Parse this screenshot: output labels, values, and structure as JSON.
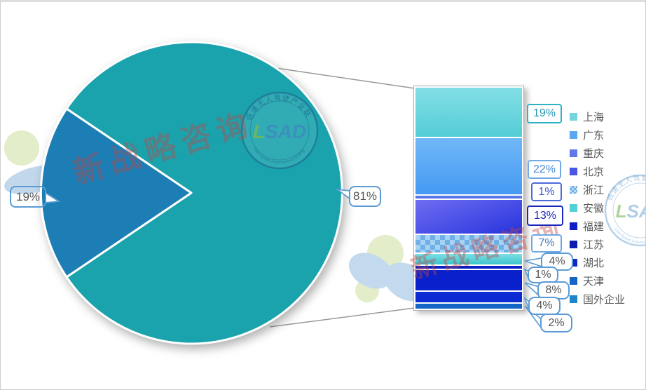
{
  "chart_data": {
    "type": "bar-of-pie",
    "title": "",
    "pie": {
      "slices": [
        {
          "label": "81%",
          "value": 81,
          "color": "#1aa3ad"
        },
        {
          "label": "19%",
          "value": 19,
          "color": "#1d7eb5"
        }
      ]
    },
    "bar_breakdown": {
      "represents_slice": "81%",
      "segments": [
        {
          "name": "上海",
          "label": "19%",
          "value": 19,
          "gradient": [
            "#83dfe6",
            "#54ccd6"
          ]
        },
        {
          "name": "广东",
          "label": "22%",
          "value": 22,
          "gradient": [
            "#70b7f8",
            "#459af2"
          ]
        },
        {
          "name": "重庆",
          "label": "1%",
          "value": 1,
          "color": "#5577e8"
        },
        {
          "name": "北京",
          "label": "13%",
          "value": 13,
          "gradient": [
            "#6f6df2",
            "#2734dc"
          ],
          "gradient_dir": "160deg"
        },
        {
          "name": "浙江",
          "label": "7%",
          "value": 7,
          "pattern": "checker",
          "color": "#9ccbf0"
        },
        {
          "name": "安徽",
          "label": "4%",
          "value": 4,
          "gradient": [
            "#7de0e4",
            "#3cc2cc"
          ]
        },
        {
          "name": "福建",
          "label": "1%",
          "value": 1,
          "color": "#0b1fc4"
        },
        {
          "name": "江苏",
          "label": "8%",
          "value": 8,
          "color": "#0a20cc"
        },
        {
          "name": "湖北",
          "label": "4%",
          "value": 4,
          "color": "#0d2bd2"
        },
        {
          "name": "天津",
          "label": "2%",
          "value": 2,
          "color": "#1567c5"
        }
      ]
    },
    "legend": {
      "position": "right",
      "items": [
        {
          "label": "上海",
          "color": "#76d4e0"
        },
        {
          "label": "广东",
          "color": "#5aa6f2"
        },
        {
          "label": "重庆",
          "color": "#6278e8"
        },
        {
          "label": "北京",
          "color": "#4b55e6"
        },
        {
          "label": "浙江",
          "color": "#8ec6ee",
          "pattern": "checker"
        },
        {
          "label": "安徽",
          "color": "#52d0d8"
        },
        {
          "label": "福建",
          "color": "#0f1ec8"
        },
        {
          "label": "江苏",
          "color": "#0c1cae"
        },
        {
          "label": "湖北",
          "color": "#0e2ac4"
        },
        {
          "label": "天津",
          "color": "#1565c8"
        },
        {
          "label": "国外企业",
          "color": "#1c86c8"
        }
      ]
    }
  },
  "watermarks": {
    "brand_text": "新战略咨询",
    "logo_l": "L",
    "logo_sad": "SAD",
    "logo_ring_text_top": "低速无人驾驶产业联盟",
    "logo_ring_text_bottom": "Low-Speed Autonomous Driving"
  }
}
